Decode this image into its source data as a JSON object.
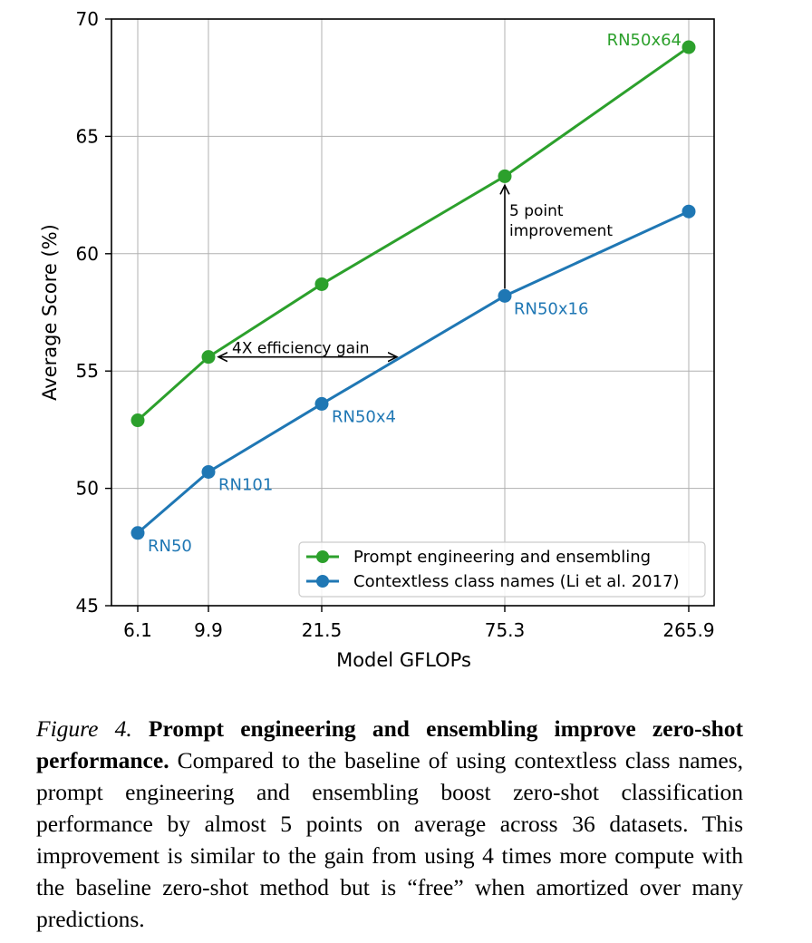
{
  "chart_data": {
    "type": "line",
    "xlabel": "Model GFLOPs",
    "ylabel": "Average Score (%)",
    "x_tick_labels": [
      "6.1",
      "9.9",
      "21.5",
      "75.3",
      "265.9"
    ],
    "x": [
      6.1,
      9.9,
      21.5,
      75.3,
      265.9
    ],
    "x_scale": "log",
    "ylim": [
      45,
      70
    ],
    "y_ticks": [
      "45",
      "50",
      "55",
      "60",
      "65",
      "70"
    ],
    "grid": true,
    "legend_position": "lower-right",
    "series": [
      {
        "name": "Prompt engineering and ensembling",
        "color": "#2ca02c",
        "values": [
          52.9,
          55.6,
          58.7,
          63.3,
          68.8
        ],
        "point_labels": [
          "",
          "",
          "",
          "",
          "RN50x64"
        ]
      },
      {
        "name": "Contextless class names (Li et al. 2017)",
        "color": "#1f77b4",
        "values": [
          48.1,
          50.7,
          53.6,
          58.2,
          61.8
        ],
        "point_labels": [
          "RN50",
          "RN101",
          "RN50x4",
          "RN50x16",
          ""
        ]
      }
    ],
    "annotations": [
      {
        "text": "4X efficiency gain"
      },
      {
        "lines": [
          "5 point",
          "improvement"
        ]
      }
    ]
  },
  "caption": {
    "label": "Figure 4.",
    "bold": "Prompt engineering and ensembling improve zero-shot performance.",
    "text": "Compared to the baseline of using contextless class names, prompt engineering and ensembling boost zero-shot classification performance by almost 5 points on average across 36 datasets. This improvement is similar to the gain from using 4 times more compute with the baseline zero-shot method but is “free” when amortized over many predictions."
  }
}
